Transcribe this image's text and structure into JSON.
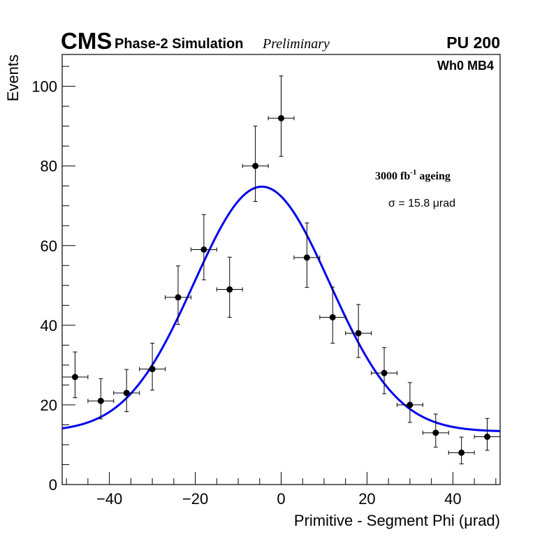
{
  "header": {
    "experiment": "CMS",
    "subtitle": "Phase-2 Simulation",
    "status": "Preliminary",
    "pileup": "PU 200"
  },
  "annotations": {
    "region": "Wh0 MB4",
    "ageing_main": "3000 fb",
    "ageing_sup": "-1",
    "ageing_tail": " ageing",
    "sigma": "σ = 15.8 μrad"
  },
  "chart_data": {
    "type": "scatter",
    "title": "",
    "xlabel": "Primitive - Segment Phi (μrad)",
    "ylabel": "Events",
    "xlim": [
      -51,
      51
    ],
    "ylim": [
      0,
      108
    ],
    "xticks": [
      -40,
      -20,
      0,
      20,
      40
    ],
    "xtick_labels": [
      "−40",
      "−20",
      "0",
      "20",
      "40"
    ],
    "yticks": [
      0,
      20,
      40,
      60,
      80,
      100
    ],
    "ytick_labels": [
      "0",
      "20",
      "40",
      "60",
      "80",
      "100"
    ],
    "grid": false,
    "bin_half_width": 3,
    "series": [
      {
        "name": "data",
        "style": "points-with-errorbars",
        "color": "#000000",
        "x": [
          -48,
          -42,
          -36,
          -30,
          -24,
          -18,
          -12,
          -6,
          0,
          6,
          12,
          18,
          24,
          30,
          36,
          42,
          48
        ],
        "y": [
          27,
          21,
          23,
          29,
          47,
          59,
          49,
          80,
          92,
          57,
          42,
          38,
          28,
          20,
          13,
          8,
          12
        ],
        "yerr_low": [
          5.2,
          4.5,
          4.7,
          5.3,
          6.8,
          7.6,
          7.0,
          8.9,
          9.6,
          7.5,
          6.5,
          6.1,
          5.2,
          4.4,
          3.6,
          2.8,
          3.4
        ],
        "yerr_high": [
          6.3,
          5.6,
          5.9,
          6.5,
          7.9,
          8.8,
          8.1,
          10.0,
          10.6,
          8.7,
          7.6,
          7.2,
          6.4,
          5.6,
          4.7,
          3.9,
          4.6
        ]
      },
      {
        "name": "fit",
        "style": "line",
        "color": "#0000ee",
        "model": "gaussian + constant",
        "params": {
          "amplitude": 61.5,
          "mean": -4.5,
          "sigma": 15.8,
          "constant": 13.3
        }
      }
    ]
  }
}
